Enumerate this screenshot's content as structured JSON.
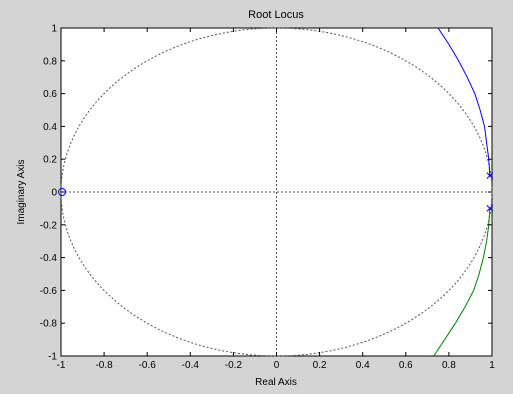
{
  "chart_data": {
    "type": "line",
    "title": "Root Locus",
    "xlabel": "Real Axis",
    "ylabel": "Imaginary Axis",
    "xlim": [
      -1,
      1
    ],
    "ylim": [
      -1,
      1
    ],
    "x_ticks": [
      -1,
      -0.8,
      -0.6,
      -0.4,
      -0.2,
      0,
      0.2,
      0.4,
      0.6,
      0.8,
      1
    ],
    "y_ticks": [
      1,
      0.8,
      0.6,
      0.4,
      0.2,
      0,
      -0.2,
      -0.4,
      -0.6,
      -0.8,
      -1
    ],
    "unit_circle": true,
    "grid": false,
    "series": [
      {
        "color": "#0000ff",
        "points": [
          [
            0.99,
            0.1
          ],
          [
            0.985,
            0.2
          ],
          [
            0.975,
            0.3
          ],
          [
            0.965,
            0.4
          ],
          [
            0.945,
            0.5
          ],
          [
            0.92,
            0.6
          ],
          [
            0.885,
            0.7
          ],
          [
            0.845,
            0.8
          ],
          [
            0.8,
            0.9
          ],
          [
            0.75,
            1.0
          ]
        ]
      },
      {
        "color": "#008000",
        "points": [
          [
            0.99,
            -0.1
          ],
          [
            0.985,
            -0.2
          ],
          [
            0.975,
            -0.3
          ],
          [
            0.96,
            -0.4
          ],
          [
            0.94,
            -0.5
          ],
          [
            0.915,
            -0.6
          ],
          [
            0.875,
            -0.7
          ],
          [
            0.83,
            -0.8
          ],
          [
            0.78,
            -0.9
          ],
          [
            0.73,
            -1.0
          ]
        ]
      }
    ],
    "poles": [
      {
        "x": 0.99,
        "y": 0.1
      },
      {
        "x": 0.99,
        "y": -0.1
      }
    ],
    "zeros": [
      {
        "x": -0.995,
        "y": 0
      }
    ],
    "colors": {
      "background": "#d4d4d4",
      "plot_area": "#ffffff",
      "marker": "#0000ff",
      "guide": "#555555"
    }
  }
}
